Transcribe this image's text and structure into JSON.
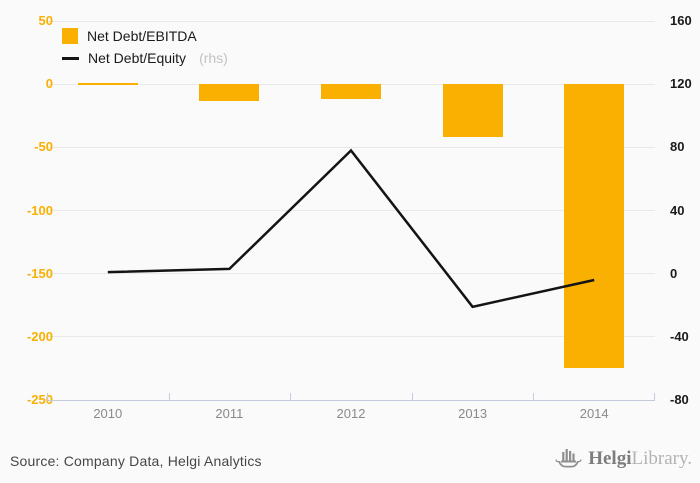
{
  "legend": {
    "items": [
      {
        "label": "Net Debt/EBITDA",
        "type": "bar"
      },
      {
        "label": "Net Debt/Equity",
        "suffix": "(rhs)",
        "type": "line"
      }
    ]
  },
  "chart_data": {
    "type": "combo",
    "categories": [
      "2010",
      "2011",
      "2012",
      "2013",
      "2014"
    ],
    "series": [
      {
        "name": "Net Debt/EBITDA",
        "type": "bar",
        "axis": "left",
        "values": [
          0,
          -13,
          -12,
          -42,
          -225
        ]
      },
      {
        "name": "Net Debt/Equity (rhs)",
        "type": "line",
        "axis": "right",
        "values": [
          1,
          3,
          78,
          -21,
          -4
        ]
      }
    ],
    "left_axis": {
      "min": -250,
      "max": 50,
      "ticks": [
        50,
        0,
        -50,
        -100,
        -150,
        -200,
        -250
      ]
    },
    "right_axis": {
      "min": -80,
      "max": 160,
      "ticks": [
        160,
        120,
        80,
        40,
        0,
        -40,
        -80
      ]
    },
    "grid": true,
    "legend_position": "top-left"
  },
  "footer": {
    "source": "Source: Company Data, Helgi Analytics",
    "logo": {
      "bold": "Helgi",
      "light": "Library."
    }
  },
  "colors": {
    "accent": "#F9B000",
    "series_line": "#141414",
    "grid": "#e9e9e9",
    "axis": "#c5cbdd",
    "left_label": "#F9B000",
    "right_label": "#1a1a1a",
    "x_label": "#8a8a8a",
    "legend_text": "#1a1a1a",
    "legend_suffix": "#c2c2c2",
    "source_text": "#464646",
    "logo_icon": "#8f8f8f",
    "logo_bold": "#7d7d7d",
    "logo_light": "#b3b3b3",
    "background": "#fafafa"
  }
}
